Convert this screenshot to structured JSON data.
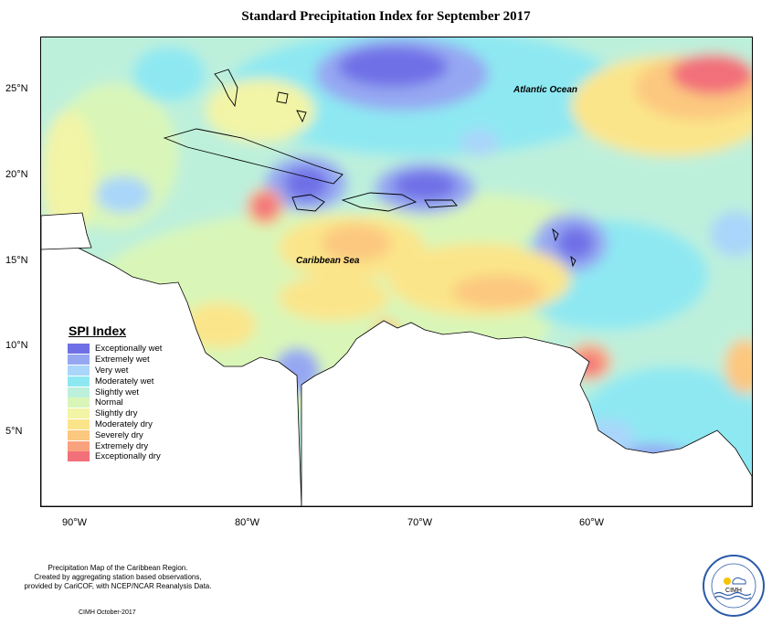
{
  "title": "Standard Precipitation Index for September 2017",
  "map_labels": {
    "atlantic": "Atlantic Ocean",
    "caribbean": "Caribbean Sea"
  },
  "lat_ticks": [
    "25°N",
    "20°N",
    "15°N",
    "10°N",
    "5°N"
  ],
  "lon_ticks": [
    "90°W",
    "80°W",
    "70°W",
    "60°W"
  ],
  "legend": {
    "title": "SPI Index",
    "items": [
      {
        "label": "Exceptionally wet",
        "color": "#6f70e6"
      },
      {
        "label": "Extremely wet",
        "color": "#96a7f2"
      },
      {
        "label": "Very wet",
        "color": "#a9d6fa"
      },
      {
        "label": "Moderately wet",
        "color": "#8ee8f2"
      },
      {
        "label": "Slightly wet",
        "color": "#bdf0db"
      },
      {
        "label": "Normal",
        "color": "#d9f6b8"
      },
      {
        "label": "Slightly dry",
        "color": "#f2f4a6"
      },
      {
        "label": "Moderately dry",
        "color": "#fbe58a"
      },
      {
        "label": "Severely dry",
        "color": "#fcc77f"
      },
      {
        "label": "Extremely dry",
        "color": "#f9a27e"
      },
      {
        "label": "Exceptionally dry",
        "color": "#f2707a"
      }
    ]
  },
  "footer": {
    "line1": "Precipitation Map of the Caribbean Region.",
    "line2": "Created by aggregating station based observations,",
    "line3": "provided by CariCOF, with NCEP/NCAR Reanalysis Data.",
    "credit": "CIMH October-2017"
  },
  "logo_text": "CIMH"
}
